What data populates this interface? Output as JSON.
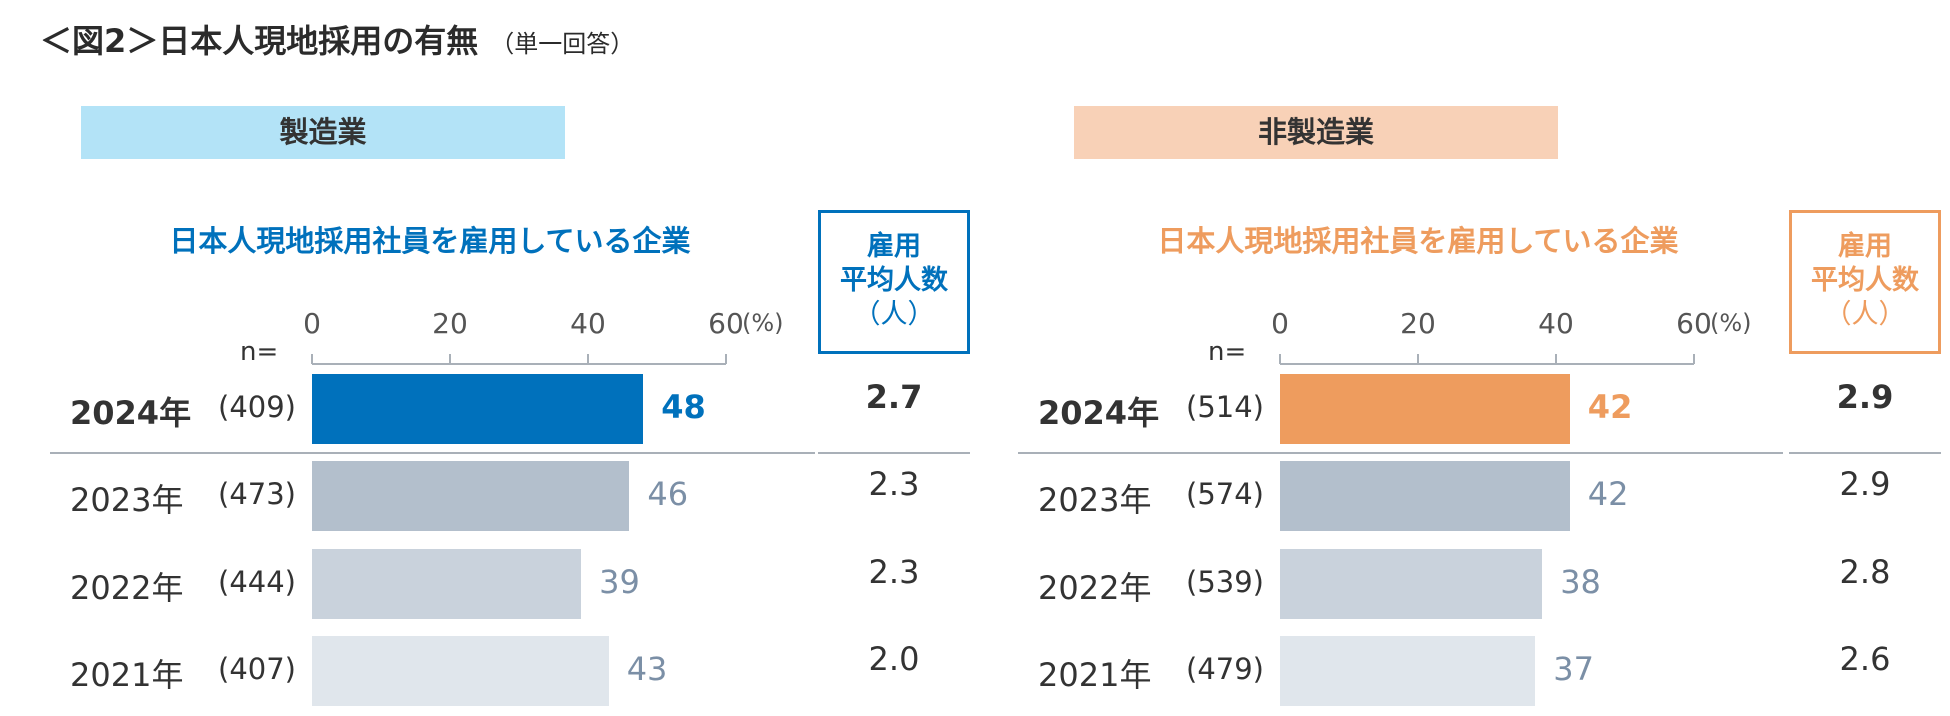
{
  "title": {
    "main": "＜図2＞日本人現地採用の有無",
    "note": "（単一回答）"
  },
  "chart_data": [
    {
      "type": "bar",
      "orientation": "horizontal",
      "sector": "製造業",
      "subtitle": "日本人現地採用社員を雇用している企業",
      "accent": "#0071bc",
      "banner_color": "#b3e3f7",
      "xlim": [
        0,
        60
      ],
      "ticks": [
        "0",
        "20",
        "40",
        "60"
      ],
      "unit": "(%)",
      "n_label": "n=",
      "avg_header": [
        "雇用",
        "平均人数",
        "（人）"
      ],
      "rows": [
        {
          "year": "2024年",
          "n": "(409)",
          "value": 48,
          "avg": "2.7"
        },
        {
          "year": "2023年",
          "n": "(473)",
          "value": 46,
          "avg": "2.3"
        },
        {
          "year": "2022年",
          "n": "(444)",
          "value": 39,
          "avg": "2.3"
        },
        {
          "year": "2021年",
          "n": "(407)",
          "value": 43,
          "avg": "2.0"
        }
      ]
    },
    {
      "type": "bar",
      "orientation": "horizontal",
      "sector": "非製造業",
      "subtitle": "日本人現地採用社員を雇用している企業",
      "accent": "#ee9c5e",
      "banner_color": "#f8d1b7",
      "xlim": [
        0,
        60
      ],
      "ticks": [
        "0",
        "20",
        "40",
        "60"
      ],
      "unit": "(%)",
      "n_label": "n=",
      "avg_header": [
        "雇用",
        "平均人数",
        "（人）"
      ],
      "rows": [
        {
          "year": "2024年",
          "n": "(514)",
          "value": 42,
          "avg": "2.9"
        },
        {
          "year": "2023年",
          "n": "(574)",
          "value": 42,
          "avg": "2.9"
        },
        {
          "year": "2022年",
          "n": "(539)",
          "value": 38,
          "avg": "2.8"
        },
        {
          "year": "2021年",
          "n": "(479)",
          "value": 37,
          "avg": "2.6"
        }
      ]
    }
  ],
  "colors": {
    "bar_2023": "#b3bfcc",
    "bar_2022": "#c9d2dc",
    "bar_2021": "#e0e6ec",
    "value_grey": "#7b8fa6",
    "text_dark": "#333333"
  }
}
